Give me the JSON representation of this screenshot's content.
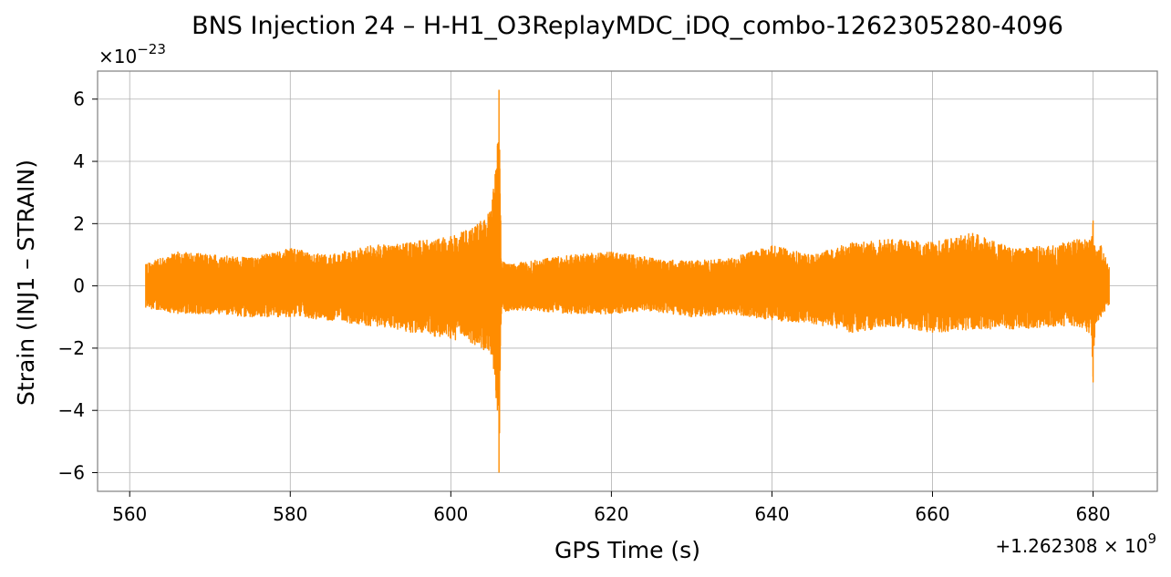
{
  "chart_data": {
    "type": "line",
    "title": "BNS Injection 24 – H-H1_O3ReplayMDC_iDQ_combo-1262305280-4096",
    "xlabel": "GPS Time (s)",
    "ylabel": "Strain (INJ1 – STRAIN)",
    "x_offset_label": "+1.262308 × 10",
    "x_offset_exponent": "9",
    "y_scale_label": "×10",
    "y_scale_exponent": "−23",
    "xlim": [
      556,
      688
    ],
    "ylim": [
      -6.6,
      6.9
    ],
    "x_ticks": [
      560,
      580,
      600,
      620,
      640,
      660,
      680
    ],
    "x_tick_labels": [
      "560",
      "580",
      "600",
      "620",
      "640",
      "660",
      "680"
    ],
    "y_ticks": [
      -6,
      -4,
      -2,
      0,
      2,
      4,
      6
    ],
    "y_tick_labels": [
      "−6",
      "−4",
      "−2",
      "0",
      "2",
      "4",
      "6"
    ],
    "grid": true,
    "series": [
      {
        "color": "#ff8c00",
        "x_start": 562,
        "x_end": 682,
        "envelope_x": [
          562,
          566,
          570,
          575,
          580,
          585,
          590,
          595,
          600,
          603,
          605,
          605.8,
          606,
          606.3,
          607,
          610,
          615,
          620,
          625,
          630,
          635,
          640,
          645,
          650,
          655,
          660,
          665,
          670,
          675,
          678,
          679.8,
          680,
          680.3,
          681,
          682
        ],
        "envelope_upper": [
          0.7,
          1.1,
          1.0,
          0.9,
          1.2,
          1.0,
          1.3,
          1.4,
          1.6,
          1.9,
          2.4,
          4.5,
          6.3,
          0.8,
          0.7,
          0.8,
          1.0,
          1.1,
          0.9,
          0.8,
          0.9,
          1.3,
          1.0,
          1.4,
          1.5,
          1.4,
          1.7,
          1.2,
          1.3,
          1.5,
          1.5,
          2.1,
          1.1,
          1.3,
          0.6
        ],
        "envelope_lower": [
          -0.7,
          -0.9,
          -0.9,
          -1.0,
          -1.0,
          -1.1,
          -1.3,
          -1.5,
          -1.7,
          -1.9,
          -2.2,
          -4.0,
          -6.0,
          -0.9,
          -0.8,
          -0.8,
          -0.9,
          -0.9,
          -0.8,
          -1.0,
          -0.9,
          -1.1,
          -1.2,
          -1.5,
          -1.3,
          -1.5,
          -1.4,
          -1.4,
          -1.3,
          -1.3,
          -1.6,
          -3.1,
          -1.2,
          -1.0,
          -0.6
        ]
      }
    ]
  }
}
